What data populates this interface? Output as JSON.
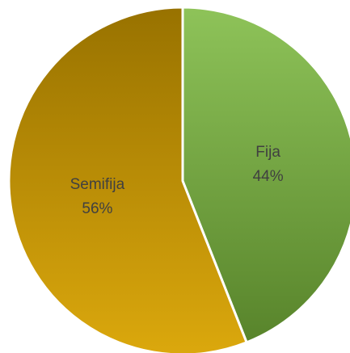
{
  "chart_data": {
    "type": "pie",
    "categories": [
      "Fija",
      "Semifija"
    ],
    "values": [
      44,
      56
    ],
    "value_labels": [
      "44%",
      "56%"
    ],
    "colors": [
      "#7ab83c",
      "#d9a300"
    ]
  }
}
